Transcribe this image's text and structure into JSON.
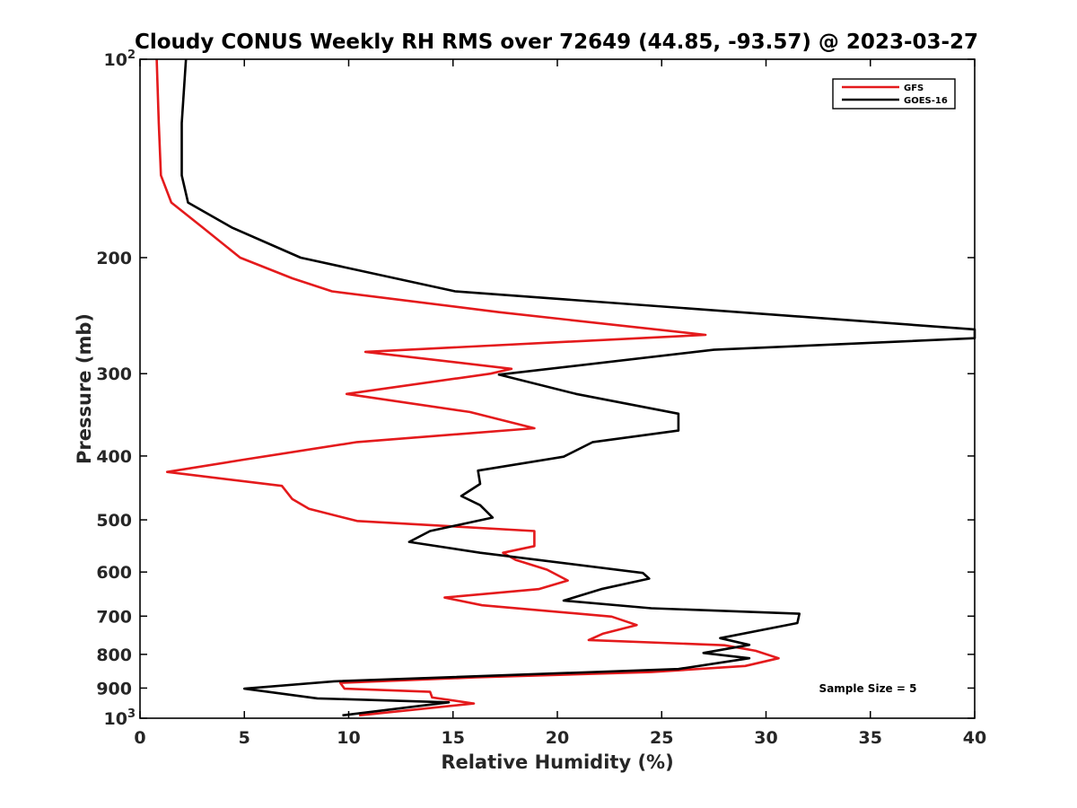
{
  "chart_data": {
    "type": "line",
    "title": "Cloudy CONUS Weekly RH RMS over 72649 (44.85, -93.57) @ 2023-03-27",
    "xlabel": "Relative Humidity (%)",
    "ylabel": "Pressure (mb)",
    "xlim": [
      0,
      40
    ],
    "ylim": [
      100,
      1000
    ],
    "yscale": "log",
    "y_reversed": true,
    "grid": false,
    "legend_position": "top-right",
    "xticks": [
      0,
      5,
      10,
      15,
      20,
      25,
      30,
      35,
      40
    ],
    "yticks": [
      {
        "value": 100,
        "label": "10",
        "exp": "2"
      },
      {
        "value": 200,
        "label": "200"
      },
      {
        "value": 300,
        "label": "300"
      },
      {
        "value": 400,
        "label": "400"
      },
      {
        "value": 500,
        "label": "500"
      },
      {
        "value": 600,
        "label": "600"
      },
      {
        "value": 700,
        "label": "700"
      },
      {
        "value": 800,
        "label": "800"
      },
      {
        "value": 900,
        "label": "900"
      },
      {
        "value": 1000,
        "label": "10",
        "exp": "3"
      }
    ],
    "annotation": "Sample Size = 5",
    "series": [
      {
        "name": "GFS",
        "color": "#e41a1c",
        "points": [
          [
            0.8,
            100
          ],
          [
            0.9,
            125
          ],
          [
            1.0,
            150
          ],
          [
            1.5,
            165
          ],
          [
            3.0,
            180
          ],
          [
            4.8,
            200
          ],
          [
            7.3,
            215
          ],
          [
            9.2,
            225
          ],
          [
            17.2,
            242
          ],
          [
            27.1,
            262
          ],
          [
            10.8,
            278
          ],
          [
            17.8,
            295
          ],
          [
            16.8,
            300
          ],
          [
            9.9,
            322
          ],
          [
            15.8,
            343
          ],
          [
            18.9,
            363
          ],
          [
            10.4,
            381
          ],
          [
            5.0,
            405
          ],
          [
            1.3,
            423
          ],
          [
            6.8,
            444
          ],
          [
            7.3,
            465
          ],
          [
            8.1,
            481
          ],
          [
            10.4,
            502
          ],
          [
            18.9,
            520
          ],
          [
            18.9,
            548
          ],
          [
            17.4,
            561
          ],
          [
            18.0,
            575
          ],
          [
            19.5,
            595
          ],
          [
            20.5,
            618
          ],
          [
            19.1,
            637
          ],
          [
            14.6,
            656
          ],
          [
            16.4,
            674
          ],
          [
            22.6,
            701
          ],
          [
            23.8,
            722
          ],
          [
            22.2,
            744
          ],
          [
            21.5,
            761
          ],
          [
            28.0,
            775
          ],
          [
            29.5,
            790
          ],
          [
            30.6,
            811
          ],
          [
            29.0,
            833
          ],
          [
            24.5,
            851
          ],
          [
            16.1,
            867
          ],
          [
            9.6,
            884
          ],
          [
            9.8,
            902
          ],
          [
            13.9,
            912
          ],
          [
            14.0,
            930
          ],
          [
            16.0,
            950
          ],
          [
            10.5,
            990
          ]
        ]
      },
      {
        "name": "GOES-16",
        "color": "#000000",
        "points": [
          [
            2.2,
            100
          ],
          [
            2.0,
            125
          ],
          [
            2.0,
            150
          ],
          [
            2.3,
            165
          ],
          [
            4.4,
            180
          ],
          [
            7.7,
            200
          ],
          [
            15.1,
            225
          ],
          [
            40.0,
            257
          ],
          [
            40.0,
            265
          ],
          [
            27.5,
            276
          ],
          [
            17.2,
            301
          ],
          [
            20.9,
            322
          ],
          [
            25.8,
            345
          ],
          [
            25.8,
            366
          ],
          [
            21.7,
            381
          ],
          [
            20.3,
            401
          ],
          [
            16.2,
            421
          ],
          [
            16.3,
            441
          ],
          [
            15.4,
            460
          ],
          [
            16.3,
            475
          ],
          [
            16.9,
            496
          ],
          [
            13.9,
            520
          ],
          [
            12.9,
            540
          ],
          [
            16.3,
            561
          ],
          [
            24.1,
            602
          ],
          [
            24.4,
            614
          ],
          [
            22.1,
            637
          ],
          [
            20.3,
            663
          ],
          [
            24.5,
            681
          ],
          [
            31.6,
            694
          ],
          [
            31.5,
            717
          ],
          [
            27.8,
            756
          ],
          [
            29.2,
            774
          ],
          [
            27.0,
            796
          ],
          [
            29.2,
            811
          ],
          [
            25.8,
            842
          ],
          [
            9.3,
            879
          ],
          [
            5.0,
            902
          ],
          [
            8.5,
            933
          ],
          [
            14.8,
            946
          ],
          [
            14.8,
            946
          ],
          [
            9.7,
            990
          ]
        ]
      }
    ]
  }
}
